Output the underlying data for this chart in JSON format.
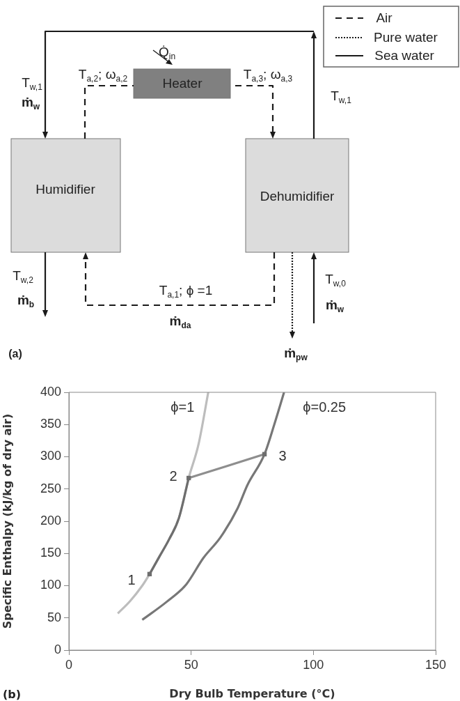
{
  "chart_data": [
    {
      "type": "other",
      "annotations": [
        "Air",
        "Pure water",
        "Sea water",
        "Q̇$_{in}$",
        "T$_{a,2}$; ω$_{a,2}$",
        "Heater",
        "T$_{a,3}$; ω$_{a,3}$",
        "T$_{w,1}$",
        "ṁ$_{w}$",
        "Humidifier",
        "Dehumidifier",
        "T$_{w,1}$",
        "T$_{w,2}$",
        "ṁ$_{b}$",
        "T$_{a,1}$; ϕ =1",
        "ṁ$_{da}$",
        "T$_{w,0}$",
        "ṁ$_{w}$",
        "ṁ$_{pw}$",
        "(a)"
      ]
    },
    {
      "type": "line",
      "xlabel": "Dry Bulb Temperature (°C)",
      "ylabel": "Specific Enthalpy (kJ/kg of dry air)",
      "xlim": [
        0,
        150
      ],
      "xticks": [
        0,
        50,
        100,
        150
      ],
      "ylim": [
        0,
        400
      ],
      "yticks": [
        0,
        50,
        100,
        150,
        200,
        250,
        300,
        350,
        400
      ],
      "series": [
        {
          "name": "ϕ=1",
          "color": "#bdbdbd",
          "x": [
            20,
            25,
            30,
            33,
            37,
            41,
            45,
            49,
            53,
            57
          ],
          "values": [
            57,
            76,
            100,
            118,
            145,
            172,
            205,
            267,
            319,
            400
          ]
        },
        {
          "color": "#6e6e6e",
          "x": [
            33,
            37,
            41,
            45,
            49
          ],
          "values": [
            118,
            145,
            172,
            205,
            267
          ]
        },
        {
          "color": "#8e8e8e",
          "x": [
            49,
            80
          ],
          "values": [
            267,
            304
          ]
        },
        {
          "name": "ϕ=0.25",
          "color": "#777777",
          "x": [
            30,
            40,
            48,
            55,
            62,
            69,
            73,
            80,
            84,
            88
          ],
          "values": [
            47,
            75,
            102,
            143,
            175,
            220,
            256,
            304,
            350,
            400
          ]
        },
        {
          "type": "scatter",
          "marker": "square",
          "color": "#6e6e6e",
          "x": [
            33,
            49,
            80
          ],
          "values": [
            118,
            267,
            304
          ]
        }
      ],
      "annotations": [
        {
          "text": "1",
          "x": 33,
          "y": 118
        },
        {
          "text": "2",
          "x": 49,
          "y": 267
        },
        {
          "text": "3",
          "x": 80,
          "y": 304
        },
        "(b)"
      ]
    }
  ]
}
